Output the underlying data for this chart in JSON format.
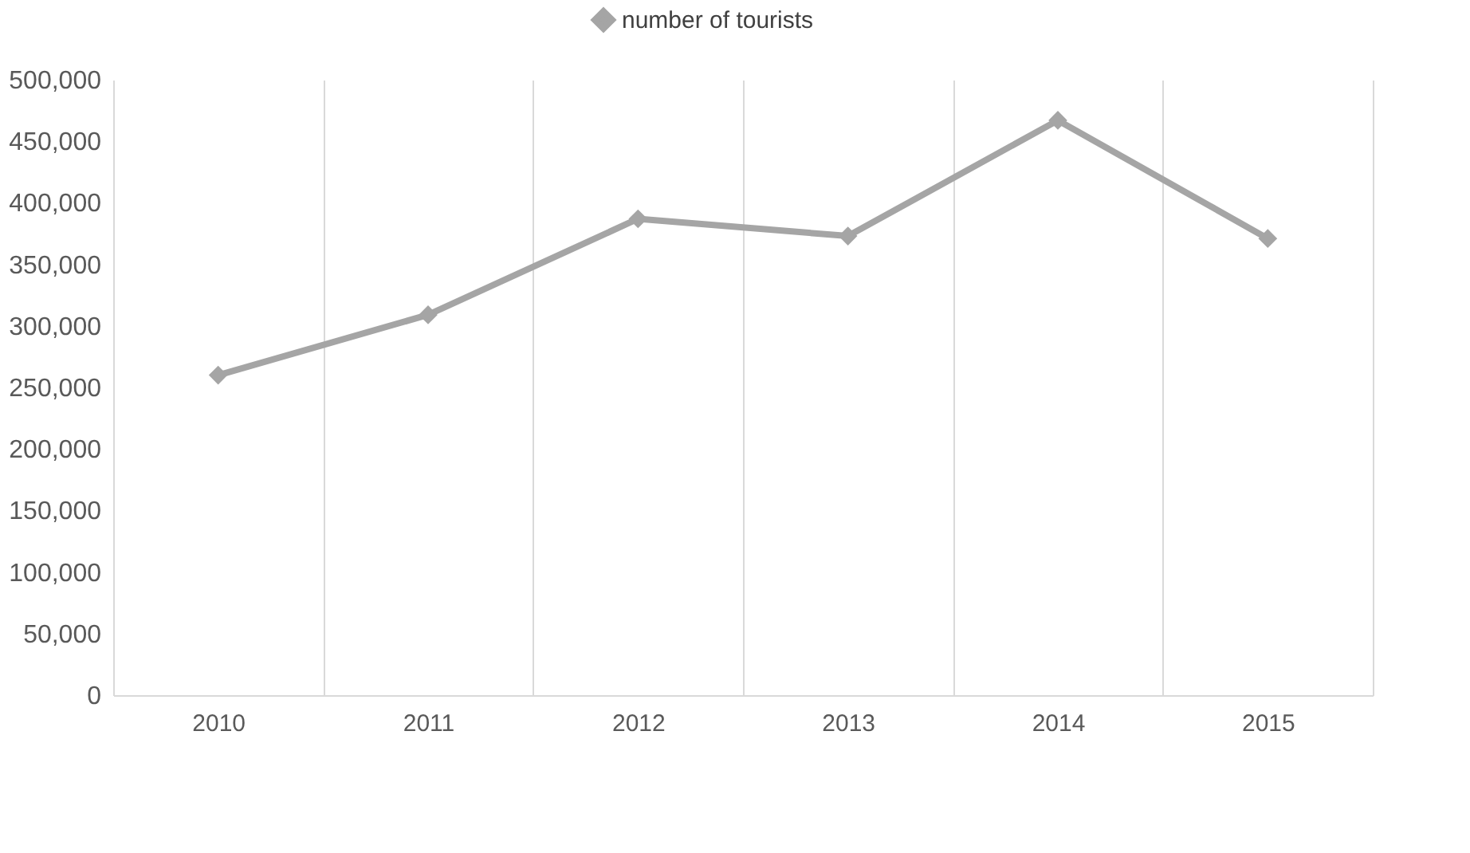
{
  "chart_data": {
    "type": "line",
    "categories": [
      "2010",
      "2011",
      "2012",
      "2013",
      "2014",
      "2015"
    ],
    "series": [
      {
        "name": "number of tourists",
        "color": "#a5a5a5",
        "values": [
          260000,
          309000,
          387000,
          373000,
          467000,
          371000
        ]
      }
    ],
    "ylim": [
      0,
      500000
    ],
    "yticks": [
      0,
      {
        "value": 50000,
        "label": "50,000"
      },
      {
        "value": 100000,
        "label": "100,000"
      },
      {
        "value": 150000,
        "label": "150,000"
      },
      {
        "value": 200000,
        "label": "200,000"
      },
      {
        "value": 250000,
        "label": "250,000"
      },
      {
        "value": 300000,
        "label": "300,000"
      },
      {
        "value": 350000,
        "label": "350,000"
      },
      {
        "value": 400000,
        "label": "400,000"
      },
      {
        "value": 450000,
        "label": "450,000"
      },
      {
        "value": 500000,
        "label": "500,000"
      }
    ],
    "grid": "x",
    "legend": "top",
    "marker": "diamond",
    "line_style": "solid"
  }
}
